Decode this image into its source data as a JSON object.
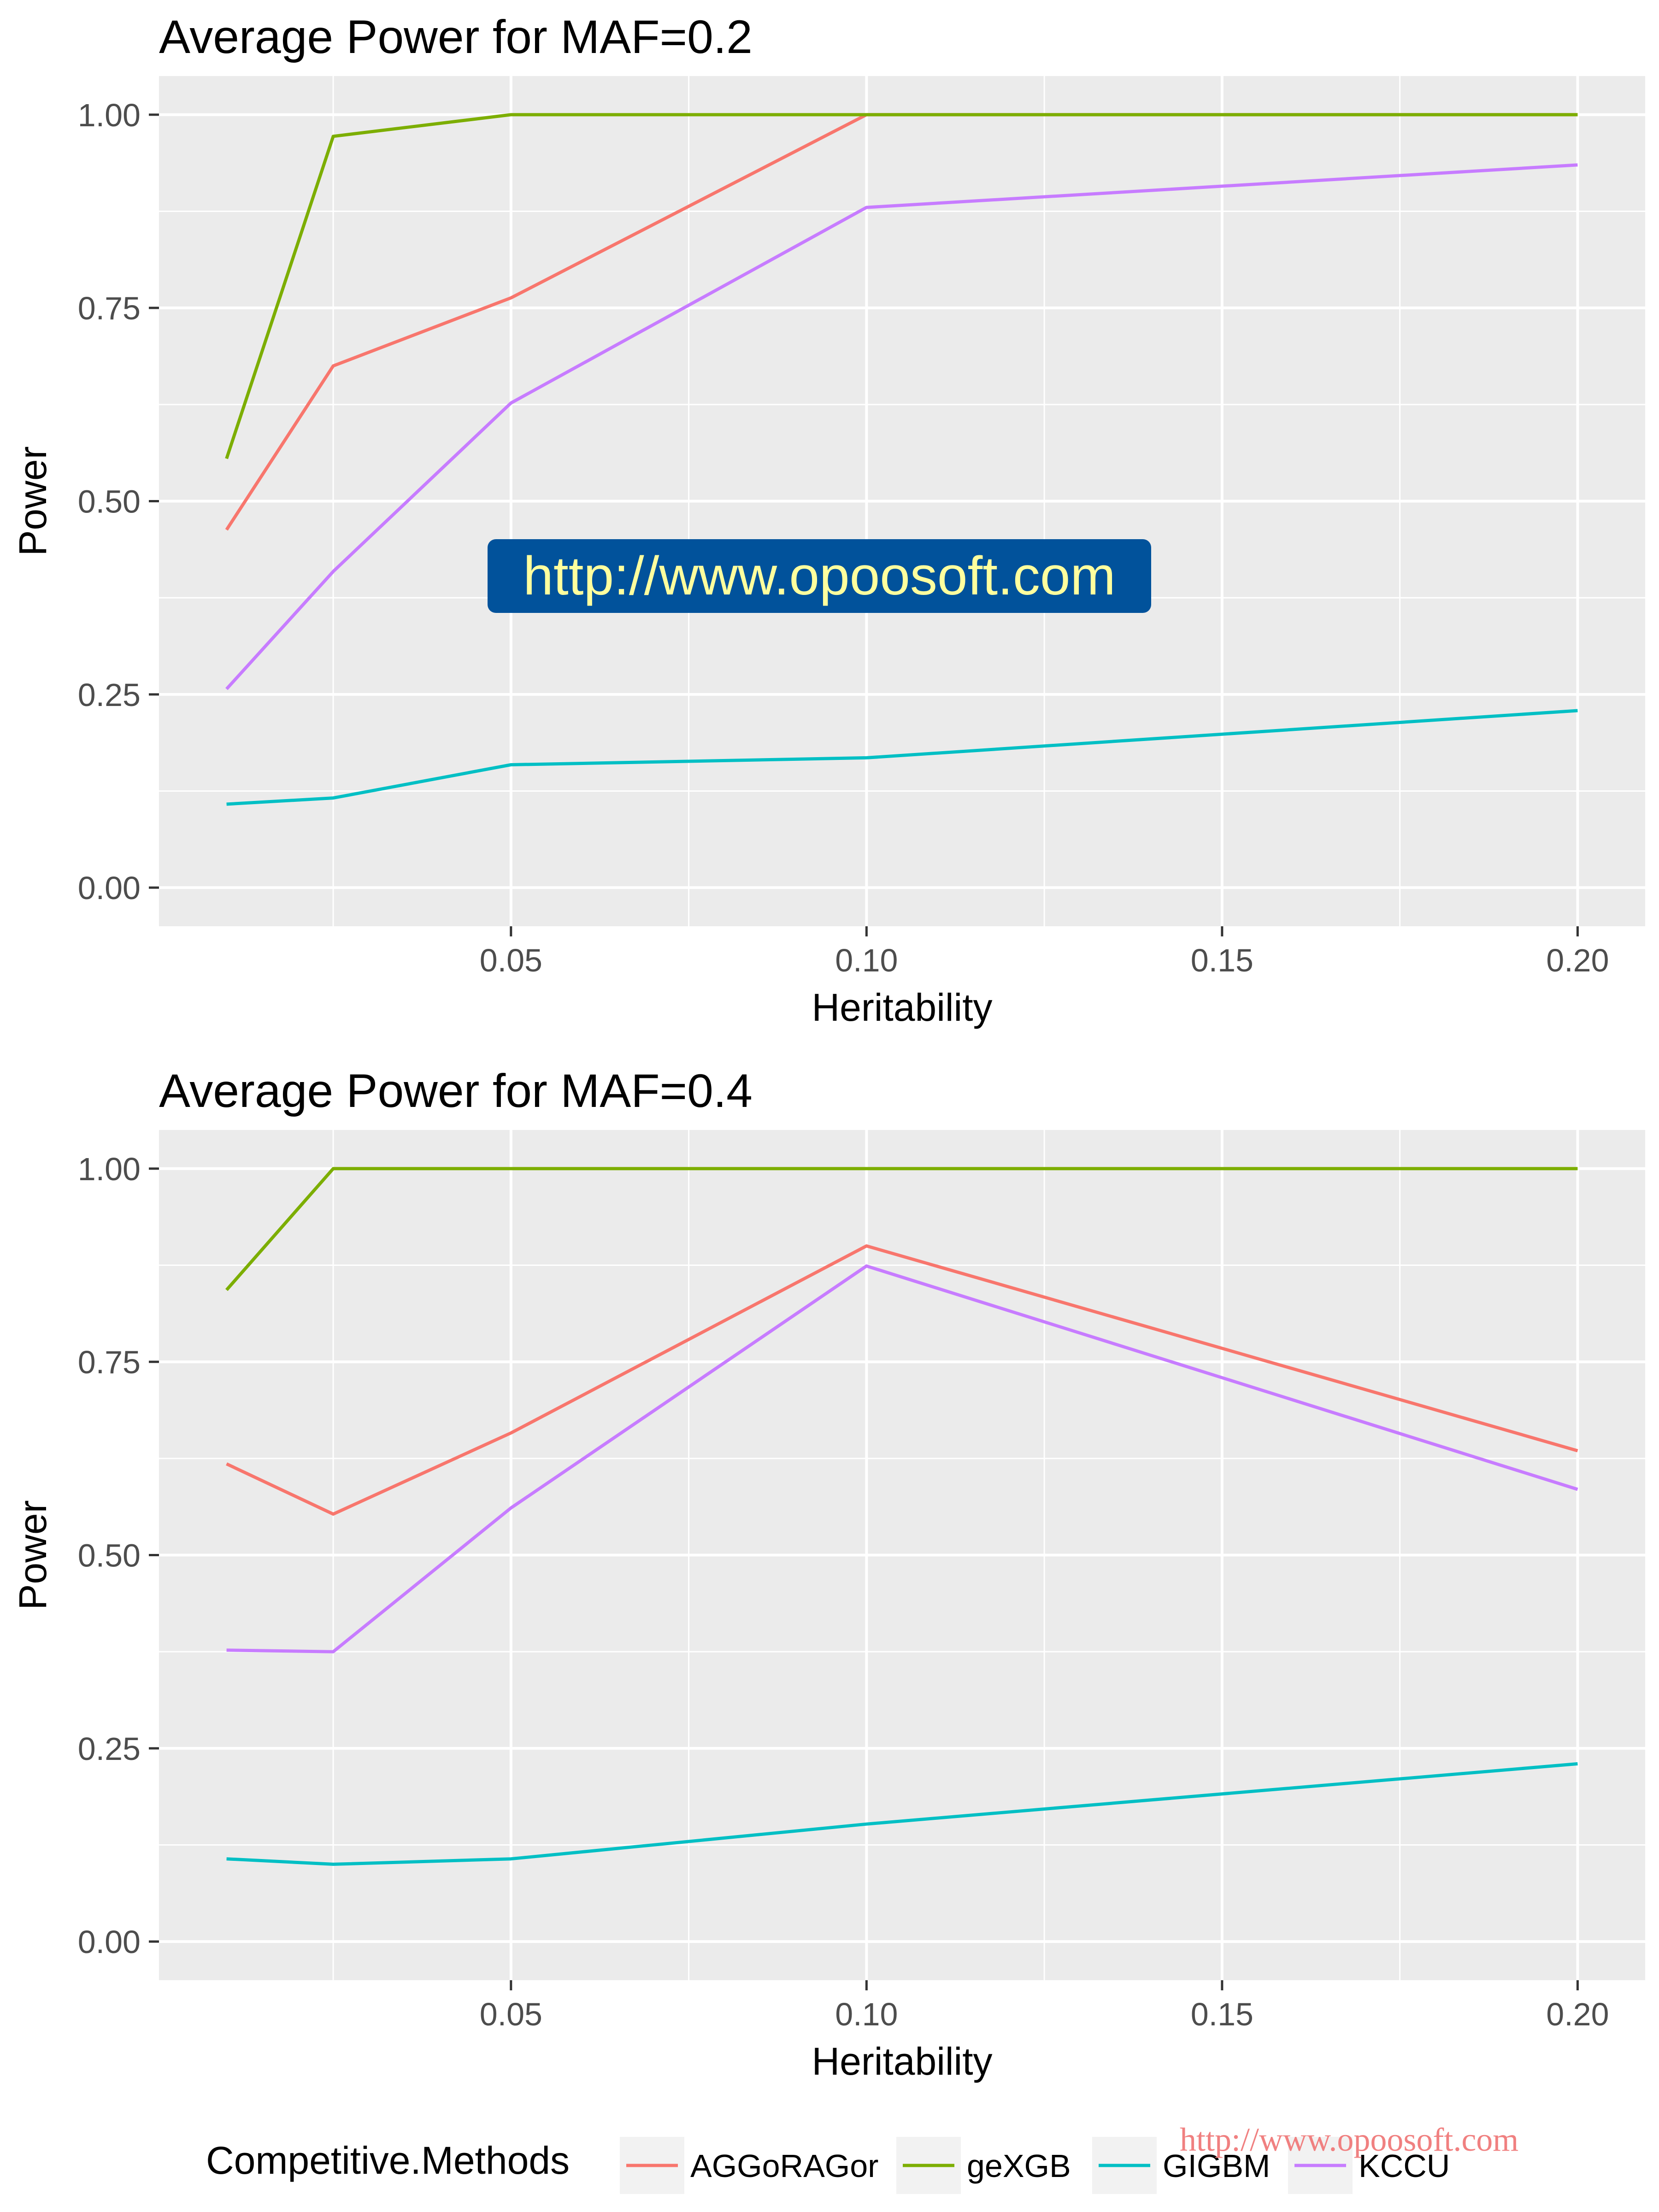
{
  "chart_data": [
    {
      "type": "line",
      "title": "Average Power for MAF=0.2",
      "xlabel": "Heritability",
      "ylabel": "Power",
      "x": [
        0.01,
        0.025,
        0.05,
        0.1,
        0.2
      ],
      "xlim": [
        0.0005,
        0.2095
      ],
      "ylim": [
        -0.05,
        1.05
      ],
      "xticks": [
        0.05,
        0.1,
        0.15,
        0.2
      ],
      "xtick_labels": [
        "0.05",
        "0.10",
        "0.15",
        "0.20"
      ],
      "yticks": [
        0,
        0.25,
        0.5,
        0.75,
        1
      ],
      "ytick_labels": [
        "0.00",
        "0.25",
        "0.50",
        "0.75",
        "1.00"
      ],
      "grid": true,
      "series": [
        {
          "name": "AGGoRAGor",
          "color": "#F8766D",
          "values": [
            0.463,
            0.675,
            0.763,
            1.0,
            1.0
          ]
        },
        {
          "name": "geXGB",
          "color": "#7CAE00",
          "values": [
            0.555,
            0.972,
            1.0,
            1.0,
            1.0
          ]
        },
        {
          "name": "GIGBM",
          "color": "#00BFC4",
          "values": [
            0.108,
            0.116,
            0.159,
            0.168,
            0.229
          ]
        },
        {
          "name": "KCCU",
          "color": "#C77CFF",
          "values": [
            0.257,
            0.409,
            0.627,
            0.88,
            0.935
          ]
        }
      ]
    },
    {
      "type": "line",
      "title": "Average Power for MAF=0.4",
      "xlabel": "Heritability",
      "ylabel": "Power",
      "x": [
        0.01,
        0.025,
        0.05,
        0.1,
        0.2
      ],
      "xlim": [
        0.0005,
        0.2095
      ],
      "ylim": [
        -0.05,
        1.05
      ],
      "xticks": [
        0.05,
        0.1,
        0.15,
        0.2
      ],
      "xtick_labels": [
        "0.05",
        "0.10",
        "0.15",
        "0.20"
      ],
      "yticks": [
        0,
        0.25,
        0.5,
        0.75,
        1
      ],
      "ytick_labels": [
        "0.00",
        "0.25",
        "0.50",
        "0.75",
        "1.00"
      ],
      "grid": true,
      "series": [
        {
          "name": "AGGoRAGor",
          "color": "#F8766D",
          "values": [
            0.618,
            0.553,
            0.658,
            0.9,
            0.635
          ]
        },
        {
          "name": "geXGB",
          "color": "#7CAE00",
          "values": [
            0.843,
            1.0,
            1.0,
            1.0,
            1.0
          ]
        },
        {
          "name": "GIGBM",
          "color": "#00BFC4",
          "values": [
            0.107,
            0.1,
            0.107,
            0.152,
            0.23
          ]
        },
        {
          "name": "KCCU",
          "color": "#C77CFF",
          "values": [
            0.377,
            0.375,
            0.561,
            0.874,
            0.585
          ]
        }
      ]
    }
  ],
  "legend": {
    "title": "Competitive.Methods",
    "position": "bottom",
    "entries": [
      {
        "name": "AGGoRAGor",
        "color": "#F8766D"
      },
      {
        "name": "geXGB",
        "color": "#7CAE00"
      },
      {
        "name": "GIGBM",
        "color": "#00BFC4"
      },
      {
        "name": "KCCU",
        "color": "#C77CFF"
      }
    ]
  },
  "watermark": {
    "text": "http://www.opoosoft.com"
  },
  "footer_watermark": {
    "text": "http://www.opoosoft.com"
  }
}
